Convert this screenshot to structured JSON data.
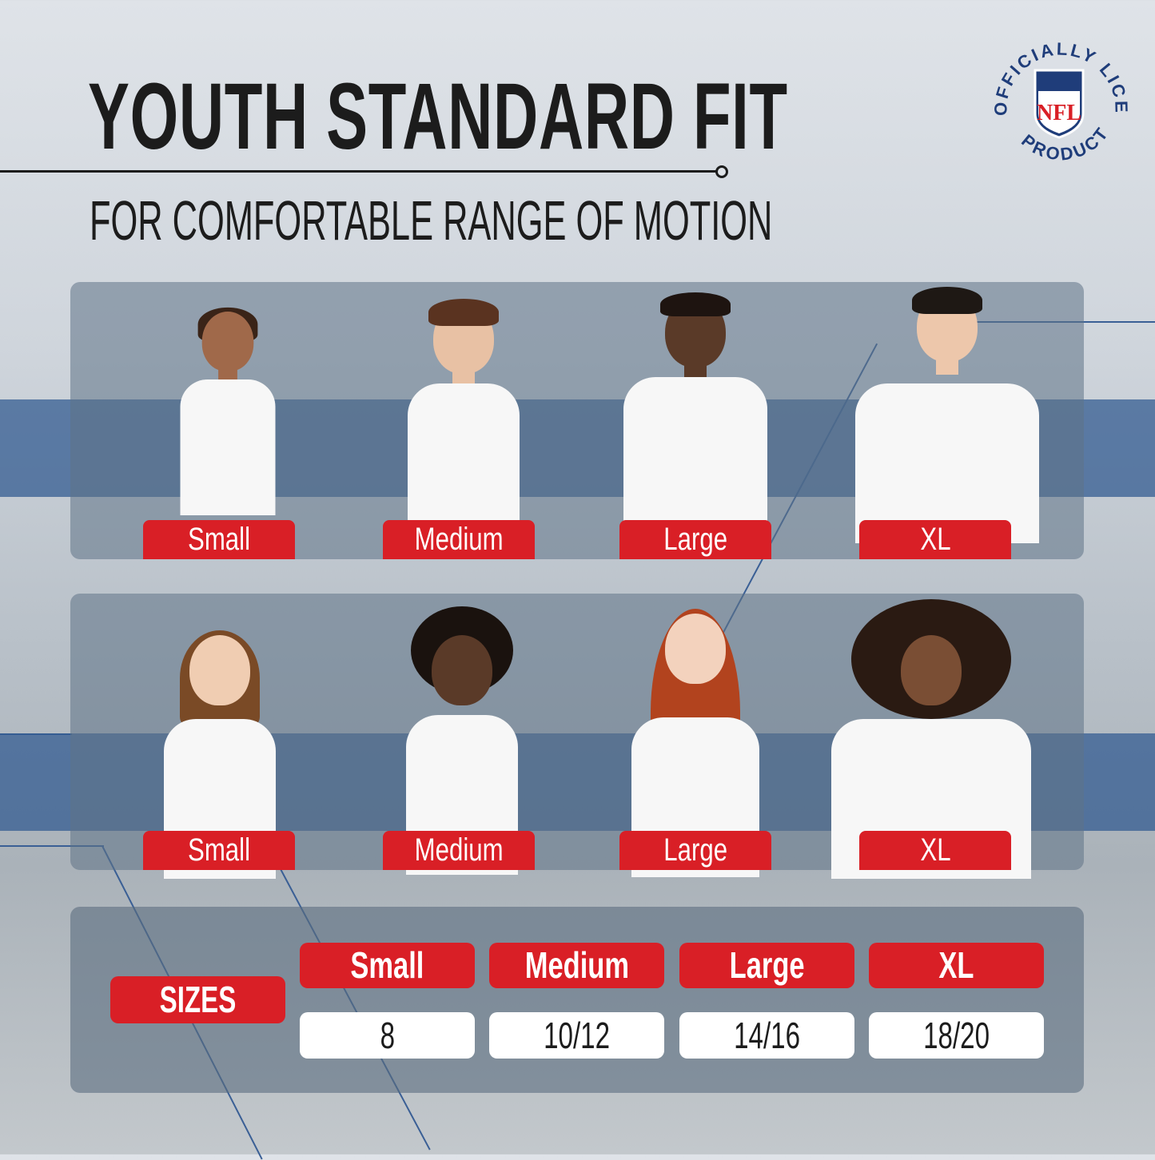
{
  "header": {
    "title": "YOUTH STANDARD FIT",
    "subtitle": "FOR COMFORTABLE RANGE OF MOTION"
  },
  "badge": {
    "text": "OFFICIALLY LICENSED PRODUCT",
    "logo_text": "NFL"
  },
  "boys_row": {
    "labels": [
      "Small",
      "Medium",
      "Large",
      "XL"
    ]
  },
  "girls_row": {
    "labels": [
      "Small",
      "Medium",
      "Large",
      "XL"
    ]
  },
  "size_chart": {
    "row_label": "SIZES",
    "headers": [
      "Small",
      "Medium",
      "Large",
      "XL"
    ],
    "values": [
      "8",
      "10/12",
      "14/16",
      "18/20"
    ]
  },
  "colors": {
    "accent_red": "#d91f26",
    "band_blue": "#345c92",
    "nfl_navy": "#1f3d7a"
  }
}
